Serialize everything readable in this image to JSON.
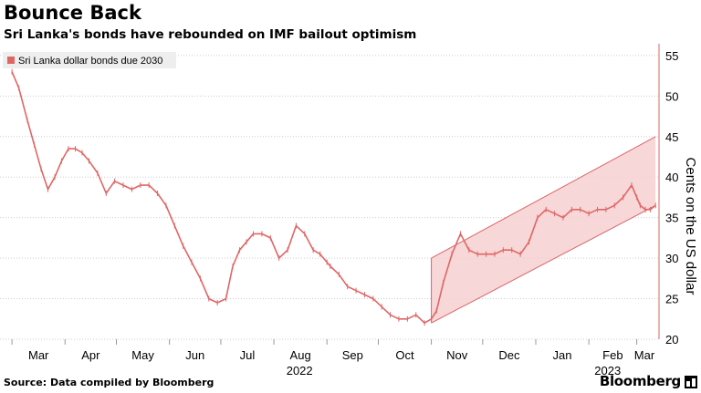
{
  "header": {
    "title": "Bounce Back",
    "subtitle": "Sri Lanka's bonds have rebounded on IMF bailout optimism"
  },
  "footer": {
    "source": "Source: Data compiled by Bloomberg",
    "brand": "Bloomberg"
  },
  "colors": {
    "series": "#e06666",
    "band_fill": "#f6d0d0",
    "band_edge": "#d9666a",
    "grid": "#cccccc",
    "legend_bg": "#eeeeee"
  },
  "chart_data": {
    "type": "line",
    "title": "Bounce Back",
    "subtitle": "Sri Lanka's bonds have rebounded on IMF bailout optimism",
    "ylabel": "Cents on the US dollar",
    "ylim": [
      20,
      56
    ],
    "yticks": [
      20,
      25,
      30,
      35,
      40,
      45,
      50,
      55
    ],
    "y_axis_side": "right",
    "grid": true,
    "legend": {
      "placement": "top-left",
      "entries": [
        "Sri Lanka dollar bonds due 2030"
      ]
    },
    "x_axis": {
      "month_labels": [
        "Mar",
        "Apr",
        "May",
        "Jun",
        "Jul",
        "Aug",
        "Sep",
        "Oct",
        "Nov",
        "Dec",
        "Jan",
        "Feb",
        "Mar"
      ],
      "year_labels": [
        "2022",
        "2023"
      ]
    },
    "series": [
      {
        "name": "Sri Lanka dollar bonds due 2030",
        "x": [
          "2022-03-01",
          "2022-03-05",
          "2022-03-10",
          "2022-03-14",
          "2022-03-18",
          "2022-03-22",
          "2022-03-26",
          "2022-03-30",
          "2022-04-03",
          "2022-04-07",
          "2022-04-11",
          "2022-04-15",
          "2022-04-20",
          "2022-04-25",
          "2022-04-30",
          "2022-05-05",
          "2022-05-10",
          "2022-05-15",
          "2022-05-20",
          "2022-05-25",
          "2022-05-30",
          "2022-06-04",
          "2022-06-09",
          "2022-06-14",
          "2022-06-19",
          "2022-06-24",
          "2022-06-29",
          "2022-07-04",
          "2022-07-08",
          "2022-07-12",
          "2022-07-16",
          "2022-07-20",
          "2022-07-25",
          "2022-07-30",
          "2022-08-04",
          "2022-08-09",
          "2022-08-14",
          "2022-08-19",
          "2022-08-24",
          "2022-08-28",
          "2022-09-01",
          "2022-09-03",
          "2022-09-08",
          "2022-09-13",
          "2022-09-18",
          "2022-09-23",
          "2022-09-28",
          "2022-10-03",
          "2022-10-08",
          "2022-10-13",
          "2022-10-18",
          "2022-10-23",
          "2022-10-28",
          "2022-11-01",
          "2022-11-04",
          "2022-11-08",
          "2022-11-13",
          "2022-11-18",
          "2022-11-23",
          "2022-11-28",
          "2022-12-03",
          "2022-12-08",
          "2022-12-13",
          "2022-12-18",
          "2022-12-23",
          "2022-12-28",
          "2023-01-02",
          "2023-01-07",
          "2023-01-12",
          "2023-01-17",
          "2023-01-22",
          "2023-01-27",
          "2023-02-01",
          "2023-02-06",
          "2023-02-11",
          "2023-02-16",
          "2023-02-21",
          "2023-02-26",
          "2023-03-01",
          "2023-03-03",
          "2023-03-06",
          "2023-03-09",
          "2023-03-12"
        ],
        "y": [
          53,
          51,
          47,
          44,
          41,
          38.5,
          40,
          42,
          43.5,
          43.5,
          43,
          42,
          40.5,
          38,
          39.5,
          39,
          38.5,
          39,
          39,
          38,
          36.5,
          34,
          31.5,
          29.5,
          27.5,
          25,
          24.5,
          25,
          29,
          31,
          32,
          33,
          33,
          32.5,
          30,
          31,
          34,
          33,
          31,
          30.5,
          29.5,
          29,
          28,
          26.5,
          26,
          25.5,
          25,
          24,
          23,
          22.5,
          22.5,
          23,
          22,
          22.5,
          23.5,
          27,
          30.5,
          33,
          31,
          30.5,
          30.5,
          30.5,
          31,
          31,
          30.5,
          32,
          35,
          36,
          35.5,
          35,
          36,
          36,
          35.5,
          36,
          36,
          36.5,
          37.5,
          39,
          37.5,
          36.5,
          36,
          36,
          36.5
        ]
      }
    ],
    "annotations": [
      {
        "type": "channel",
        "x_start": "2022-11-01",
        "x_end": "2023-03-12",
        "lower": [
          22,
          36.5
        ],
        "upper": [
          30,
          45
        ]
      }
    ]
  }
}
